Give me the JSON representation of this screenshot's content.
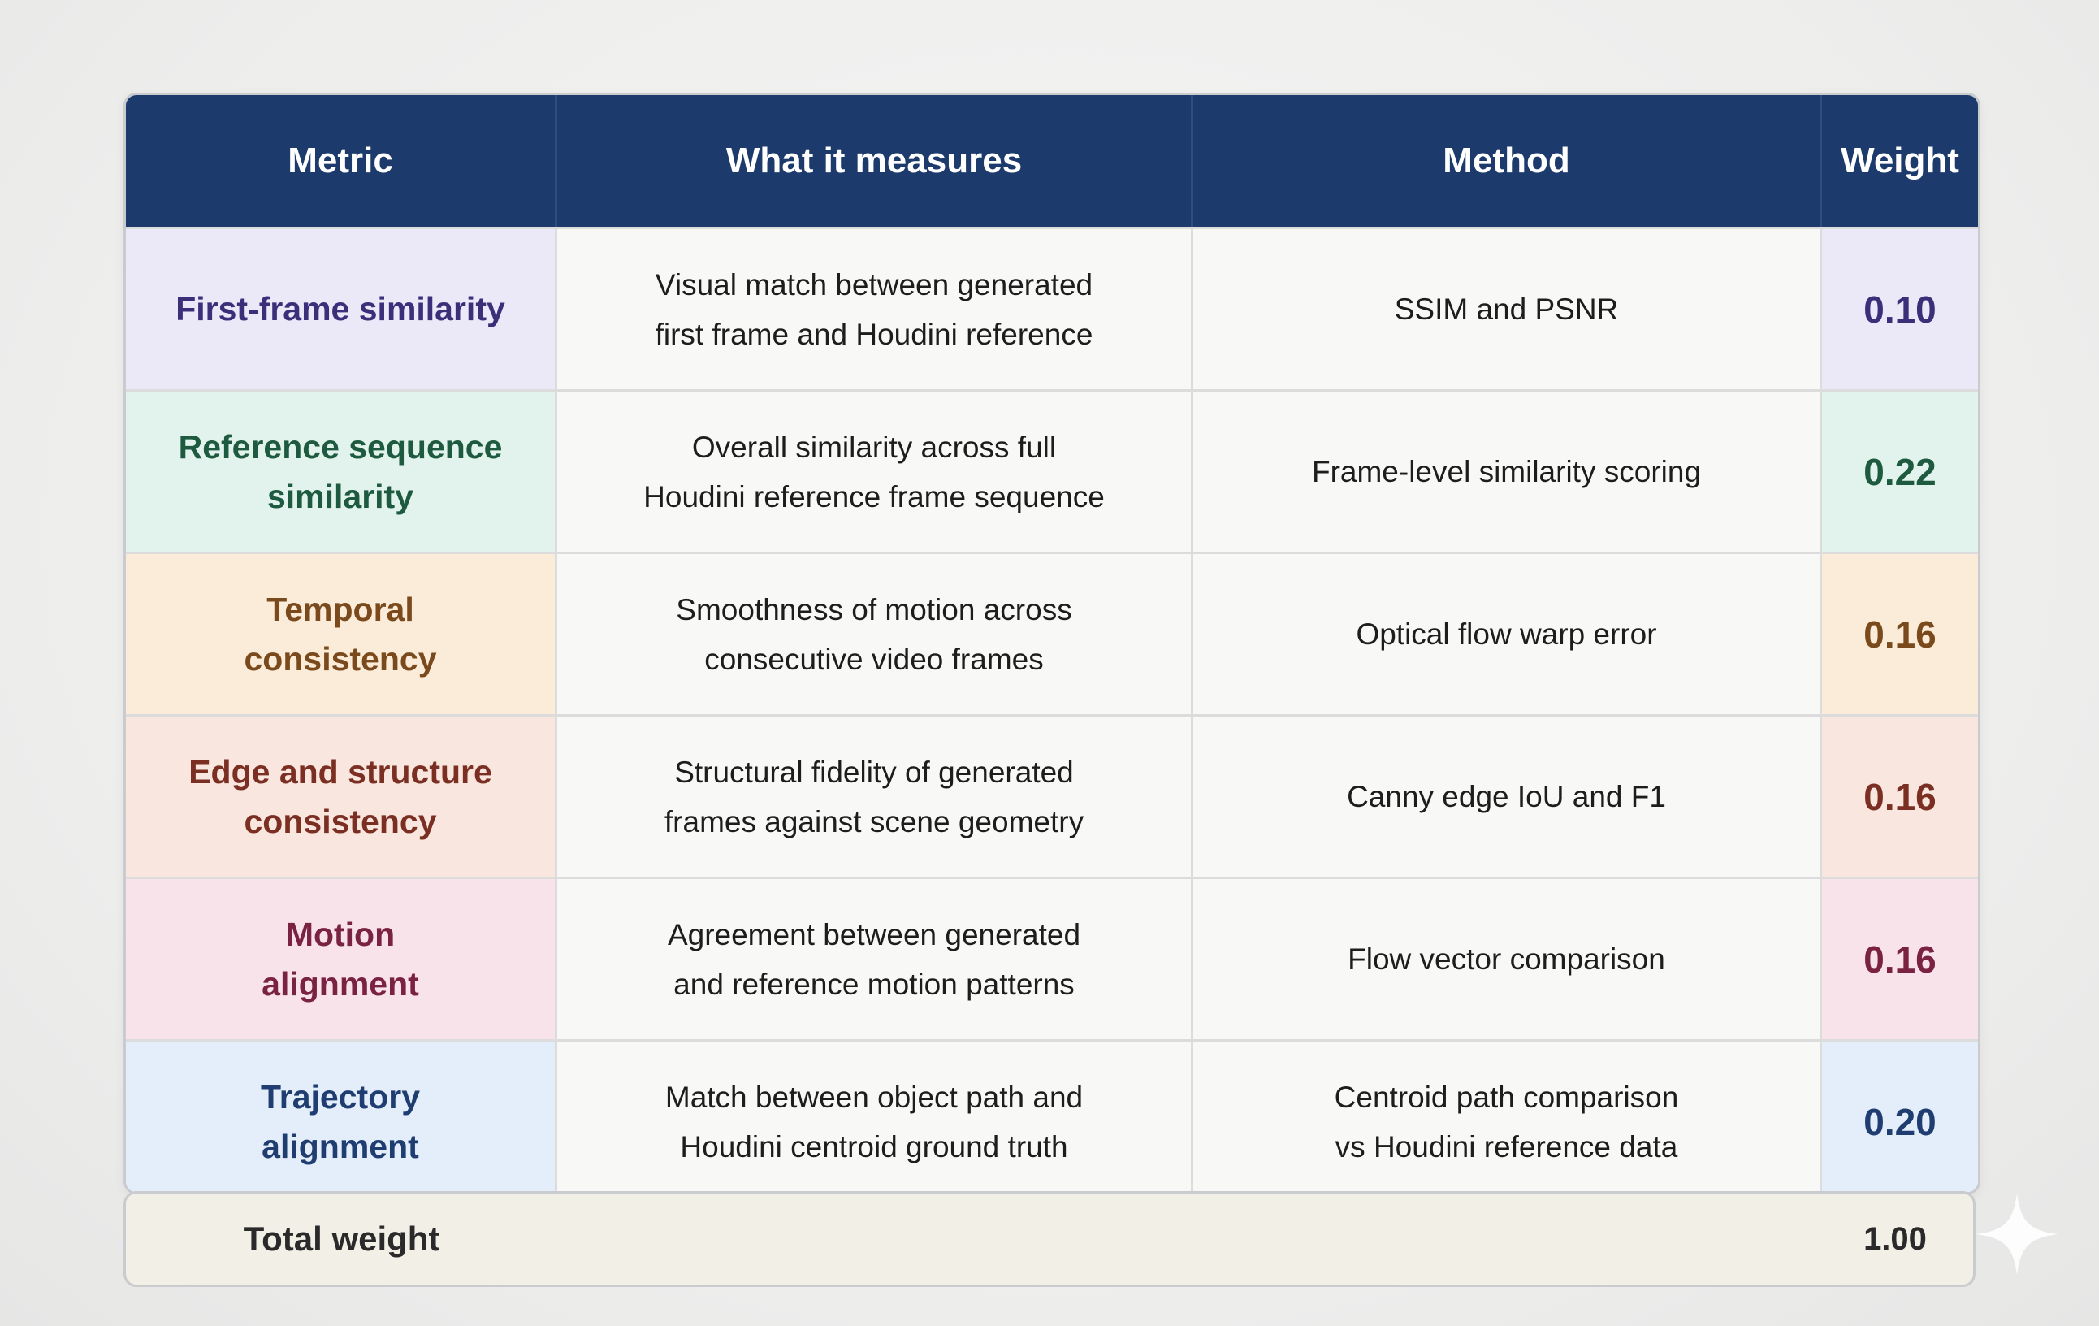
{
  "table": {
    "headers": [
      "Metric",
      "What it measures",
      "Method",
      "Weight"
    ],
    "rows": [
      {
        "metric": "First-frame similarity",
        "measures": "Visual match between generated\nfirst frame and Houdini reference",
        "method": "SSIM and PSNR",
        "weight": "0.10",
        "tint": "#ebe8f8",
        "text_color": "#3b2f7a"
      },
      {
        "metric": "Reference sequence\nsimilarity",
        "measures": "Overall similarity across full\nHoudini reference frame sequence",
        "method": "Frame-level similarity scoring",
        "weight": "0.22",
        "tint": "#e1f3ec",
        "text_color": "#1e5a40"
      },
      {
        "metric": "Temporal\nconsistency",
        "measures": "Smoothness of motion across\nconsecutive video frames",
        "method": "Optical flow warp error",
        "weight": "0.16",
        "tint": "#fbecd9",
        "text_color": "#7a4a1c"
      },
      {
        "metric": "Edge and structure\nconsistency",
        "measures": "Structural fidelity of generated\nframes against scene geometry",
        "method": "Canny edge IoU and F1",
        "weight": "0.16",
        "tint": "#f8e6df",
        "text_color": "#7a2f22"
      },
      {
        "metric": "Motion\nalignment",
        "measures": "Agreement between generated\nand reference motion patterns",
        "method": "Flow vector comparison",
        "weight": "0.16",
        "tint": "#f9e3ea",
        "text_color": "#7a2242"
      },
      {
        "metric": "Trajectory\nalignment",
        "measures": "Match between object path and\nHoudini centroid ground truth",
        "method": "Centroid path comparison\nvs Houdini reference data",
        "weight": "0.20",
        "tint": "#e3eefa",
        "text_color": "#1f3d70"
      }
    ],
    "total": {
      "label": "Total weight",
      "value": "1.00"
    }
  },
  "colors": {
    "header_bg": "#1c3a6b",
    "header_text": "#ffffff",
    "total_bg": "#f2efe6"
  },
  "icons": {
    "corner": "sparkle-icon"
  }
}
